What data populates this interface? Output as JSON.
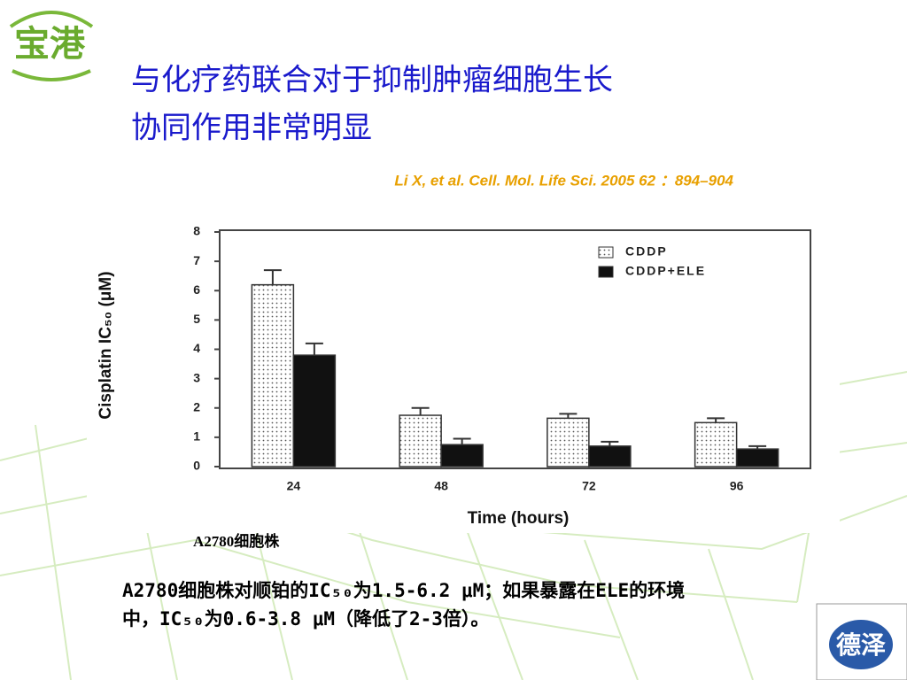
{
  "slide": {
    "logo_left": "宝港",
    "title_lines": [
      "与化疗药联合对于抑制肿瘤细胞生长",
      "协同作用非常明显"
    ],
    "citation": "Li X, et al. Cell. Mol. Life Sci. 2005 62 ：894–904",
    "caption": "A2780细胞株",
    "body_lines": [
      "A2780细胞株对顺铂的IC₅₀为1.5-6.2 μM；如果暴露在ELE的环境",
      "中，IC₅₀为0.6-3.8 μM（降低了2-3倍）。"
    ],
    "logo_right": "德泽"
  },
  "chart_data": {
    "type": "bar",
    "x_label": "Time (hours)",
    "y_label": "Cisplatin IC₅₀ (μM)",
    "categories": [
      "24",
      "48",
      "72",
      "96"
    ],
    "series": [
      {
        "name": "CDDP",
        "color": "#ffffff",
        "values": [
          6.2,
          1.75,
          1.65,
          1.5
        ],
        "errors": [
          0.5,
          0.25,
          0.15,
          0.15
        ]
      },
      {
        "name": "CDDP+ELE",
        "color": "#111111",
        "values": [
          3.8,
          0.75,
          0.7,
          0.6
        ],
        "errors": [
          0.4,
          0.2,
          0.15,
          0.1
        ]
      }
    ],
    "ylim": [
      0,
      8
    ],
    "yticks": [
      0,
      1,
      2,
      3,
      4,
      5,
      6,
      7,
      8
    ],
    "legend": "upper right"
  }
}
